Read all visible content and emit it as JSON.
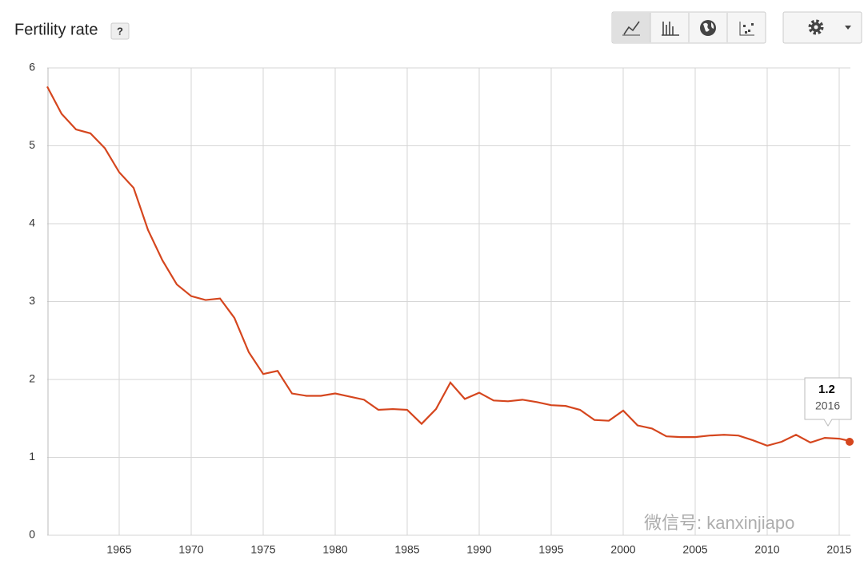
{
  "chart_data": {
    "type": "line",
    "title": "Fertility rate",
    "help": "?",
    "x": [
      1960,
      1961,
      1962,
      1963,
      1964,
      1965,
      1966,
      1967,
      1968,
      1969,
      1970,
      1971,
      1972,
      1973,
      1974,
      1975,
      1976,
      1977,
      1978,
      1979,
      1980,
      1981,
      1982,
      1983,
      1984,
      1985,
      1986,
      1987,
      1988,
      1989,
      1990,
      1991,
      1992,
      1993,
      1994,
      1995,
      1996,
      1997,
      1998,
      1999,
      2000,
      2001,
      2002,
      2003,
      2004,
      2005,
      2006,
      2007,
      2008,
      2009,
      2010,
      2011,
      2012,
      2013,
      2014,
      2015,
      2016
    ],
    "series": [
      {
        "color": "#d5461e",
        "values": [
          5.76,
          5.41,
          5.21,
          5.16,
          4.97,
          4.66,
          4.46,
          3.92,
          3.53,
          3.22,
          3.07,
          3.02,
          3.04,
          2.79,
          2.35,
          2.07,
          2.11,
          1.82,
          1.79,
          1.79,
          1.82,
          1.78,
          1.74,
          1.61,
          1.62,
          1.61,
          1.43,
          1.62,
          1.96,
          1.75,
          1.83,
          1.73,
          1.72,
          1.74,
          1.71,
          1.67,
          1.66,
          1.61,
          1.48,
          1.47,
          1.6,
          1.41,
          1.37,
          1.27,
          1.26,
          1.26,
          1.28,
          1.29,
          1.28,
          1.22,
          1.15,
          1.2,
          1.29,
          1.19,
          1.25,
          1.24,
          1.2
        ]
      }
    ],
    "xlim": [
      1960,
      2016
    ],
    "xticks": [
      1965,
      1970,
      1975,
      1980,
      1985,
      1990,
      1995,
      2000,
      2005,
      2010,
      2015
    ],
    "ylim": [
      0,
      6
    ],
    "yticks": [
      0,
      1,
      2,
      3,
      4,
      5,
      6
    ],
    "grid": true,
    "watermark": "微信号: kanxinjiapo"
  }
}
